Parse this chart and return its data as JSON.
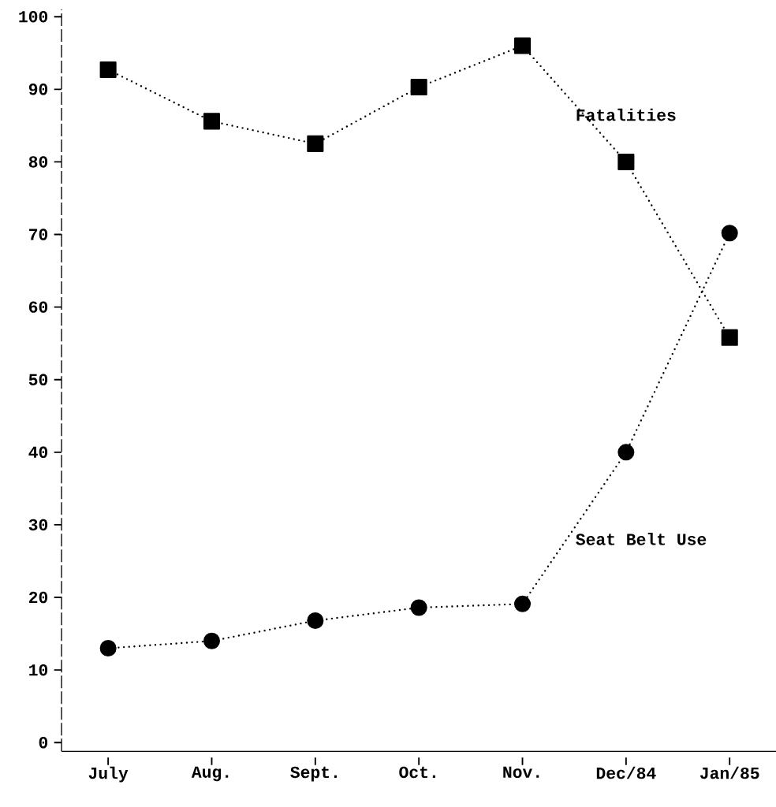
{
  "chart_data": {
    "type": "line",
    "categories": [
      "July",
      "Aug.",
      "Sept.",
      "Oct.",
      "Nov.",
      "Dec/84",
      "Jan/85"
    ],
    "series": [
      {
        "name": "Fatalities",
        "color": "#000000",
        "marker": "square",
        "values": [
          92.7,
          85.6,
          82.5,
          90.3,
          96.0,
          80.0,
          55.8
        ]
      },
      {
        "name": "Seat Belt Use",
        "color": "#000000",
        "marker": "circle",
        "values": [
          13.0,
          14.0,
          16.8,
          18.6,
          19.1,
          40.0,
          70.2
        ]
      }
    ],
    "ylim": [
      -1.2,
      101
    ],
    "yticks": [
      0,
      10,
      20,
      30,
      40,
      50,
      60,
      70,
      80,
      90,
      100
    ],
    "line_style": "dotted",
    "grid": false
  }
}
